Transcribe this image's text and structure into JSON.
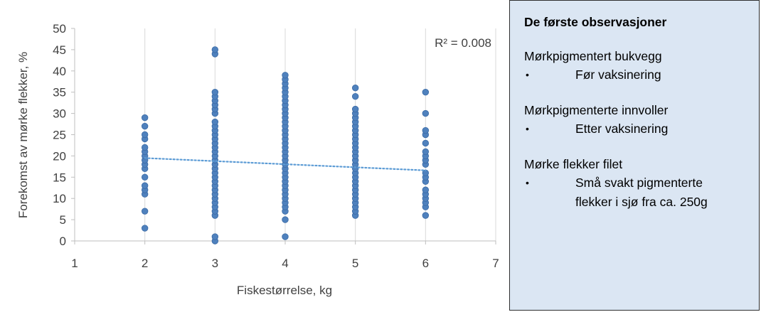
{
  "chart_data": {
    "type": "scatter",
    "xlabel": "Fiskestørrelse, kg",
    "ylabel": "Forekomst av mørke flekker, %",
    "xlim": [
      1,
      7
    ],
    "ylim": [
      0,
      50
    ],
    "xticks": [
      1,
      2,
      3,
      4,
      5,
      6,
      7
    ],
    "yticks": [
      0,
      5,
      10,
      15,
      20,
      25,
      30,
      35,
      40,
      45,
      50
    ],
    "grid": "vertical",
    "annotation": "R² = 0.008",
    "trendline": {
      "x": [
        2,
        6
      ],
      "y": [
        19.5,
        16.6
      ],
      "style": "dotted"
    },
    "point_color": "#4f81bd",
    "trend_color": "#5b9bd5",
    "points": [
      {
        "x": 2,
        "y": 3
      },
      {
        "x": 2,
        "y": 7
      },
      {
        "x": 2,
        "y": 11
      },
      {
        "x": 2,
        "y": 12
      },
      {
        "x": 2,
        "y": 13
      },
      {
        "x": 2,
        "y": 15
      },
      {
        "x": 2,
        "y": 17
      },
      {
        "x": 2,
        "y": 18
      },
      {
        "x": 2,
        "y": 19
      },
      {
        "x": 2,
        "y": 20
      },
      {
        "x": 2,
        "y": 21
      },
      {
        "x": 2,
        "y": 22
      },
      {
        "x": 2,
        "y": 24
      },
      {
        "x": 2,
        "y": 25
      },
      {
        "x": 2,
        "y": 27
      },
      {
        "x": 2,
        "y": 29
      },
      {
        "x": 3,
        "y": 0
      },
      {
        "x": 3,
        "y": 1
      },
      {
        "x": 3,
        "y": 6
      },
      {
        "x": 3,
        "y": 7
      },
      {
        "x": 3,
        "y": 8
      },
      {
        "x": 3,
        "y": 9
      },
      {
        "x": 3,
        "y": 10
      },
      {
        "x": 3,
        "y": 11
      },
      {
        "x": 3,
        "y": 12
      },
      {
        "x": 3,
        "y": 13
      },
      {
        "x": 3,
        "y": 14
      },
      {
        "x": 3,
        "y": 15
      },
      {
        "x": 3,
        "y": 16
      },
      {
        "x": 3,
        "y": 17
      },
      {
        "x": 3,
        "y": 18
      },
      {
        "x": 3,
        "y": 19
      },
      {
        "x": 3,
        "y": 20
      },
      {
        "x": 3,
        "y": 21
      },
      {
        "x": 3,
        "y": 22
      },
      {
        "x": 3,
        "y": 23
      },
      {
        "x": 3,
        "y": 24
      },
      {
        "x": 3,
        "y": 25
      },
      {
        "x": 3,
        "y": 26
      },
      {
        "x": 3,
        "y": 27
      },
      {
        "x": 3,
        "y": 28
      },
      {
        "x": 3,
        "y": 30
      },
      {
        "x": 3,
        "y": 31
      },
      {
        "x": 3,
        "y": 32
      },
      {
        "x": 3,
        "y": 33
      },
      {
        "x": 3,
        "y": 34
      },
      {
        "x": 3,
        "y": 35
      },
      {
        "x": 3,
        "y": 44
      },
      {
        "x": 3,
        "y": 45
      },
      {
        "x": 4,
        "y": 1
      },
      {
        "x": 4,
        "y": 5
      },
      {
        "x": 4,
        "y": 7
      },
      {
        "x": 4,
        "y": 8
      },
      {
        "x": 4,
        "y": 9
      },
      {
        "x": 4,
        "y": 10
      },
      {
        "x": 4,
        "y": 11
      },
      {
        "x": 4,
        "y": 12
      },
      {
        "x": 4,
        "y": 13
      },
      {
        "x": 4,
        "y": 14
      },
      {
        "x": 4,
        "y": 15
      },
      {
        "x": 4,
        "y": 16
      },
      {
        "x": 4,
        "y": 17
      },
      {
        "x": 4,
        "y": 18
      },
      {
        "x": 4,
        "y": 19
      },
      {
        "x": 4,
        "y": 20
      },
      {
        "x": 4,
        "y": 21
      },
      {
        "x": 4,
        "y": 22
      },
      {
        "x": 4,
        "y": 23
      },
      {
        "x": 4,
        "y": 24
      },
      {
        "x": 4,
        "y": 25
      },
      {
        "x": 4,
        "y": 26
      },
      {
        "x": 4,
        "y": 27
      },
      {
        "x": 4,
        "y": 28
      },
      {
        "x": 4,
        "y": 29
      },
      {
        "x": 4,
        "y": 30
      },
      {
        "x": 4,
        "y": 31
      },
      {
        "x": 4,
        "y": 32
      },
      {
        "x": 4,
        "y": 33
      },
      {
        "x": 4,
        "y": 34
      },
      {
        "x": 4,
        "y": 35
      },
      {
        "x": 4,
        "y": 36
      },
      {
        "x": 4,
        "y": 37
      },
      {
        "x": 4,
        "y": 38
      },
      {
        "x": 4,
        "y": 39
      },
      {
        "x": 5,
        "y": 6
      },
      {
        "x": 5,
        "y": 7
      },
      {
        "x": 5,
        "y": 8
      },
      {
        "x": 5,
        "y": 9
      },
      {
        "x": 5,
        "y": 10
      },
      {
        "x": 5,
        "y": 11
      },
      {
        "x": 5,
        "y": 12
      },
      {
        "x": 5,
        "y": 13
      },
      {
        "x": 5,
        "y": 14
      },
      {
        "x": 5,
        "y": 15
      },
      {
        "x": 5,
        "y": 16
      },
      {
        "x": 5,
        "y": 17
      },
      {
        "x": 5,
        "y": 18
      },
      {
        "x": 5,
        "y": 19
      },
      {
        "x": 5,
        "y": 20
      },
      {
        "x": 5,
        "y": 21
      },
      {
        "x": 5,
        "y": 22
      },
      {
        "x": 5,
        "y": 23
      },
      {
        "x": 5,
        "y": 24
      },
      {
        "x": 5,
        "y": 25
      },
      {
        "x": 5,
        "y": 26
      },
      {
        "x": 5,
        "y": 27
      },
      {
        "x": 5,
        "y": 28
      },
      {
        "x": 5,
        "y": 29
      },
      {
        "x": 5,
        "y": 30
      },
      {
        "x": 5,
        "y": 31
      },
      {
        "x": 5,
        "y": 34
      },
      {
        "x": 5,
        "y": 36
      },
      {
        "x": 6,
        "y": 6
      },
      {
        "x": 6,
        "y": 8
      },
      {
        "x": 6,
        "y": 9
      },
      {
        "x": 6,
        "y": 10
      },
      {
        "x": 6,
        "y": 11
      },
      {
        "x": 6,
        "y": 12
      },
      {
        "x": 6,
        "y": 14
      },
      {
        "x": 6,
        "y": 15
      },
      {
        "x": 6,
        "y": 16
      },
      {
        "x": 6,
        "y": 18
      },
      {
        "x": 6,
        "y": 19
      },
      {
        "x": 6,
        "y": 20
      },
      {
        "x": 6,
        "y": 21
      },
      {
        "x": 6,
        "y": 23
      },
      {
        "x": 6,
        "y": 25
      },
      {
        "x": 6,
        "y": 26
      },
      {
        "x": 6,
        "y": 30
      },
      {
        "x": 6,
        "y": 35
      }
    ]
  },
  "panel": {
    "title": "De første observasjoner",
    "sections": [
      {
        "heading": "Mørkpigmentert bukvegg",
        "bullet": "•",
        "item": "Før vaksinering"
      },
      {
        "heading": "Mørkpigmenterte innvoller",
        "bullet": "•",
        "item": "Etter vaksinering"
      },
      {
        "heading": "Mørke flekker filet",
        "bullet": "•",
        "item": "Små svakt pigmenterte flekker i sjø fra ca. 250g"
      }
    ]
  }
}
